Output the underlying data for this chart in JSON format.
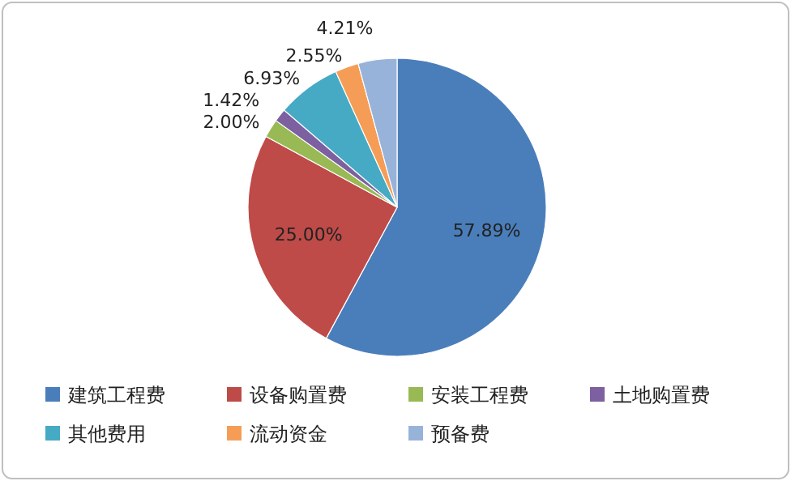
{
  "chart_data": {
    "type": "pie",
    "categories": [
      "建筑工程费",
      "设备购置费",
      "安装工程费",
      "土地购置费",
      "其他费用",
      "流动资金",
      "预备费"
    ],
    "values": [
      57.89,
      25.0,
      2.0,
      1.42,
      6.93,
      2.55,
      4.21
    ],
    "value_labels": [
      "57.89%",
      "25.00%",
      "2.00%",
      "1.42%",
      "6.93%",
      "2.55%",
      "4.21%"
    ],
    "colors": [
      "#4a7ebb",
      "#be4b48",
      "#98b954",
      "#7d60a0",
      "#46aac4",
      "#f59d56",
      "#98b3da"
    ],
    "legend": "bottom"
  }
}
